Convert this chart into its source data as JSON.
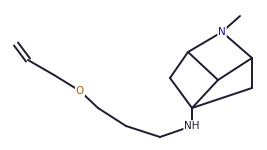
{
  "bg_color": "#ffffff",
  "line_color": "#1c1c2e",
  "atom_colors": {
    "N": "#1414aa",
    "O": "#b35900",
    "NH": "#1c1c2e"
  },
  "figsize": [
    2.67,
    1.5
  ],
  "dpi": 100,
  "lw": 1.4,
  "fs": 7.5
}
